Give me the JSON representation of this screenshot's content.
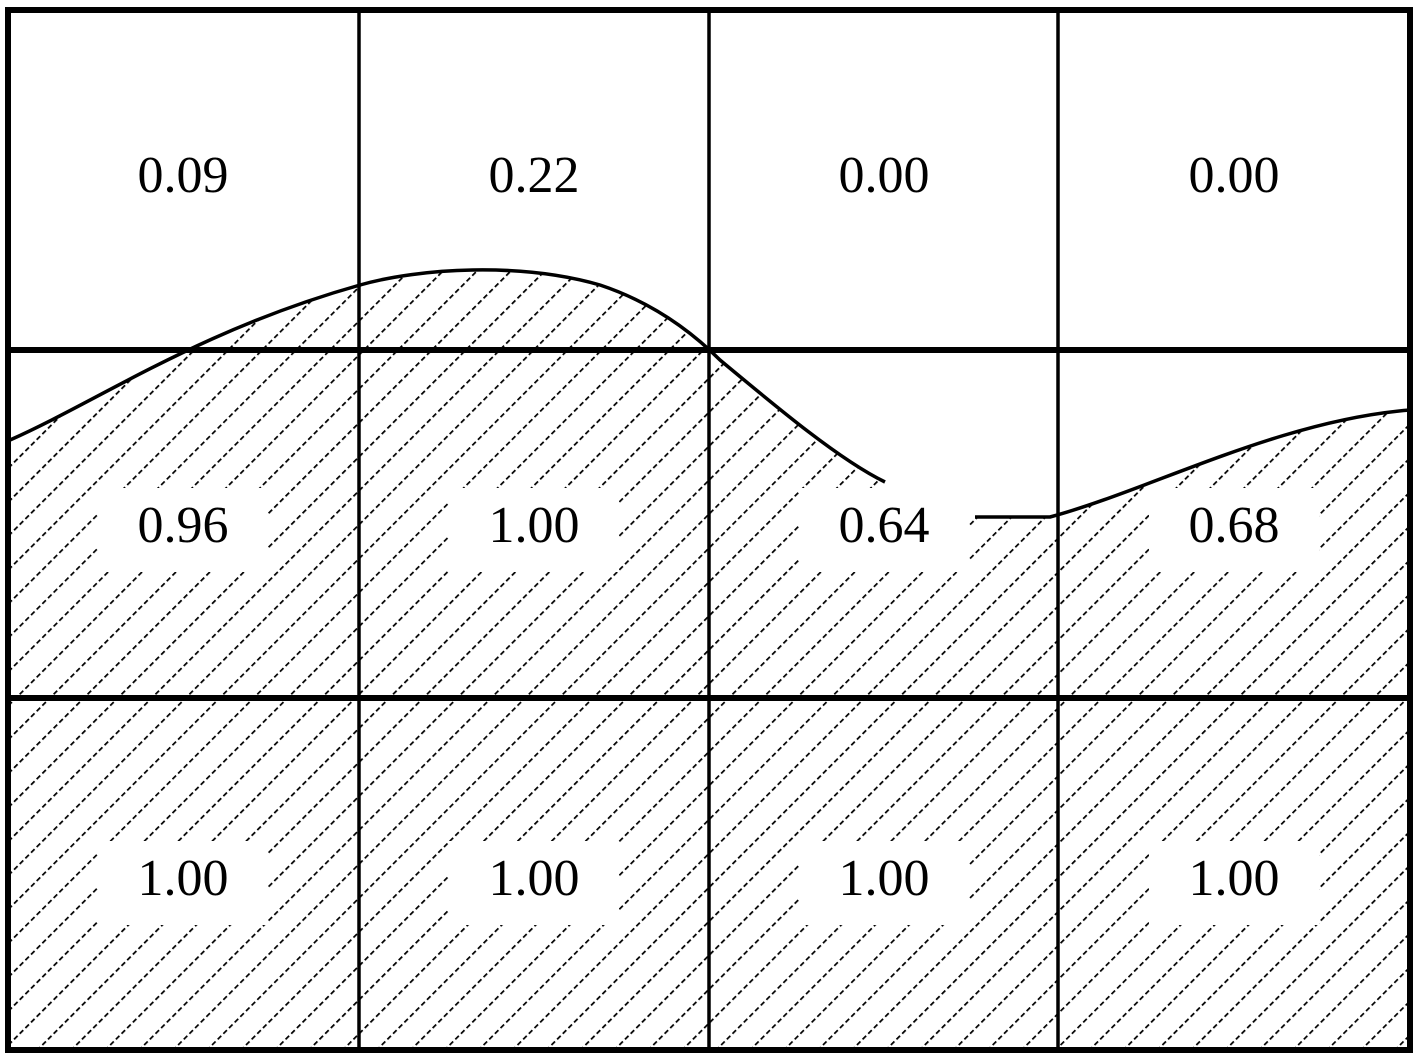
{
  "grid": {
    "rows": [
      [
        "0.09",
        "0.22",
        "0.00",
        "0.00"
      ],
      [
        "0.96",
        "1.00",
        "0.64",
        "0.68"
      ],
      [
        "1.00",
        "1.00",
        "1.00",
        "1.00"
      ]
    ]
  }
}
